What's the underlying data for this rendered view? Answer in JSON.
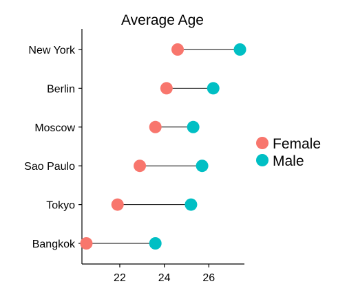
{
  "chart_data": {
    "type": "dumbbell",
    "title": "Average Age",
    "xlabel": "",
    "ylabel": "",
    "categories": [
      "New York",
      "Berlin",
      "Moscow",
      "Sao Paulo",
      "Tokyo",
      "Bangkok"
    ],
    "series": [
      {
        "name": "Female",
        "color": "#F8766D",
        "values": [
          24.6,
          24.1,
          23.6,
          22.9,
          21.9,
          20.5
        ]
      },
      {
        "name": "Male",
        "color": "#00BFC4",
        "values": [
          27.4,
          26.2,
          25.3,
          25.7,
          25.2,
          23.6
        ]
      }
    ],
    "xlim": [
      20.3,
      27.6
    ],
    "xticks": [
      22,
      24,
      26
    ],
    "grid": false,
    "legend_position": "right"
  }
}
